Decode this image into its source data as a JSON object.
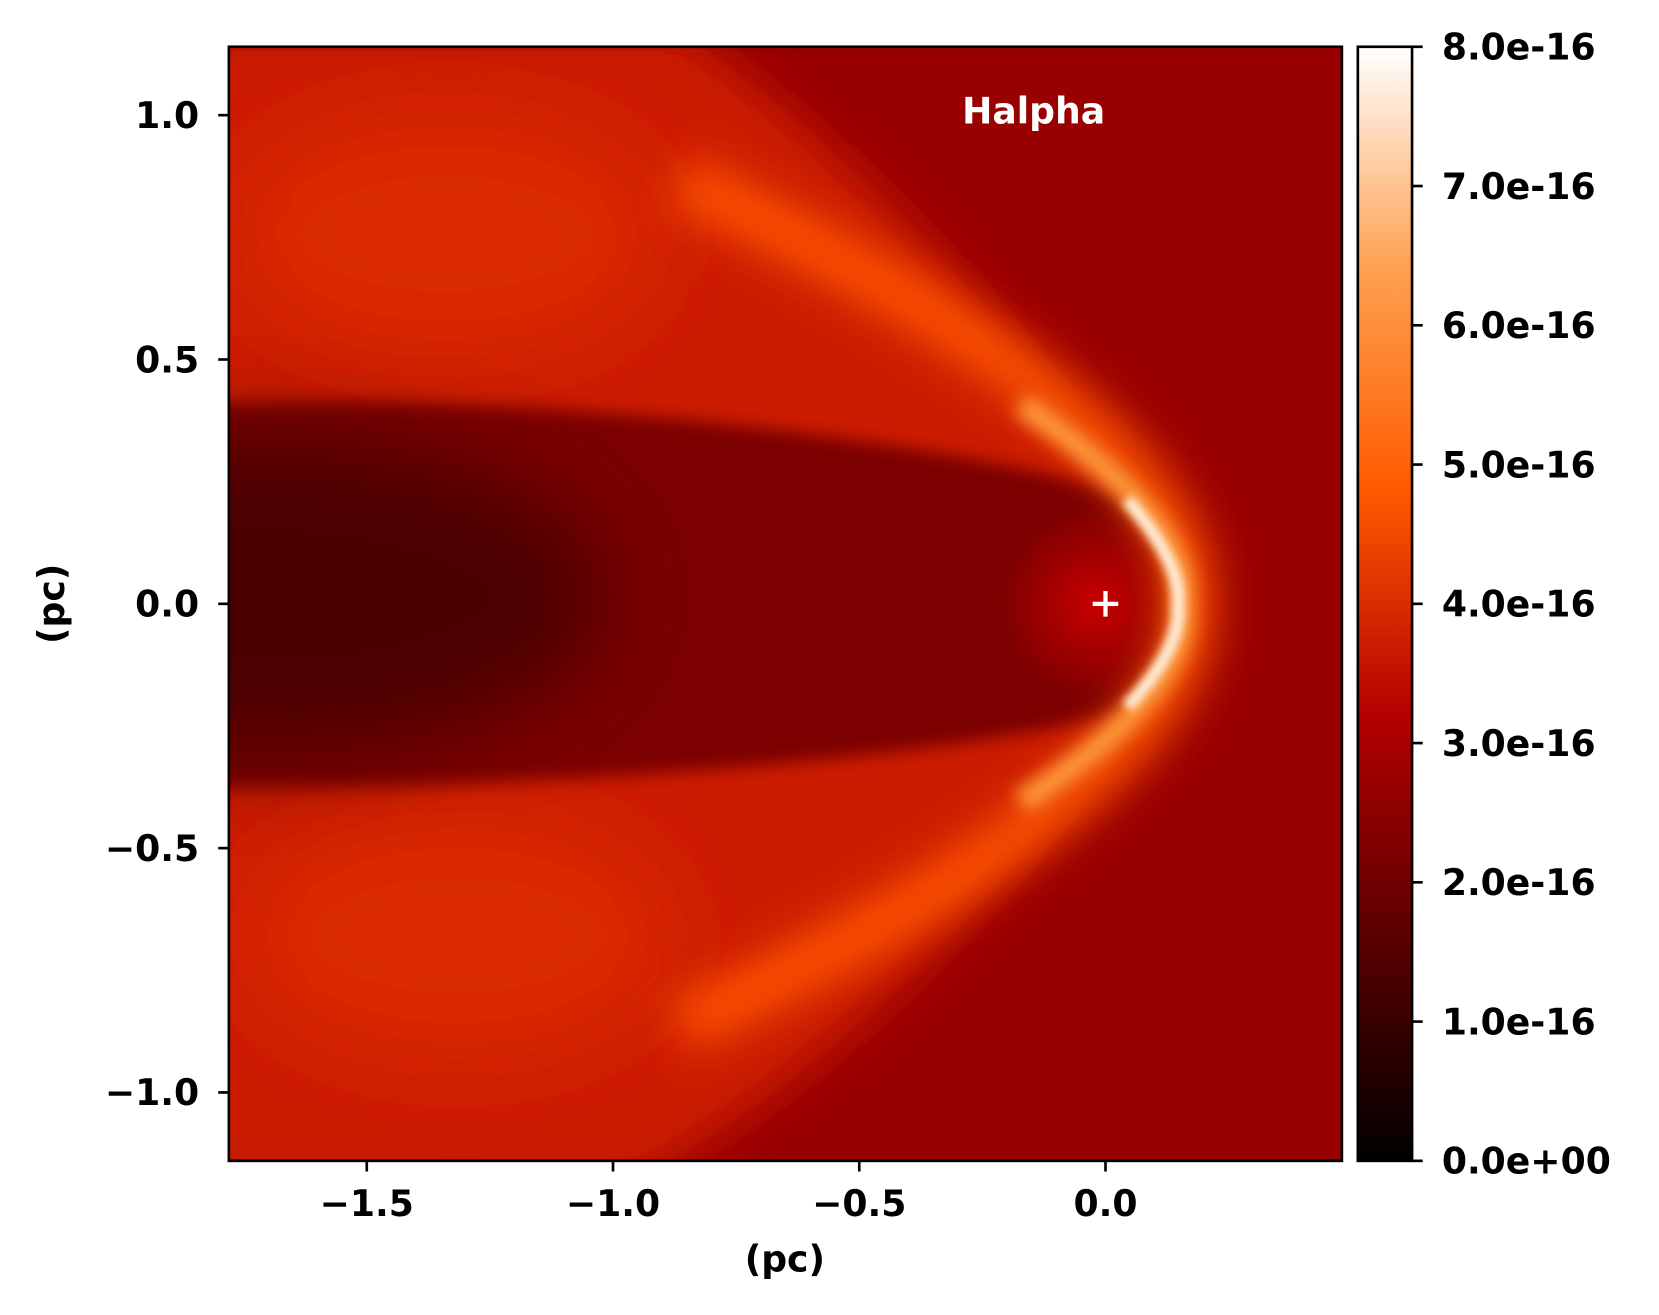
{
  "chart_data": {
    "type": "heatmap",
    "annotation": "Halpha",
    "xlabel": "(pc)",
    "ylabel": "(pc)",
    "xlim": [
      -1.78,
      0.48
    ],
    "ylim": [
      -1.14,
      1.14
    ],
    "xticks": [
      {
        "value": -1.5,
        "label": "−1.5"
      },
      {
        "value": -1.0,
        "label": "−1.0"
      },
      {
        "value": -0.5,
        "label": "−0.5"
      },
      {
        "value": 0.0,
        "label": "0.0"
      }
    ],
    "yticks": [
      {
        "value": -1.0,
        "label": "−1.0"
      },
      {
        "value": -0.5,
        "label": "−0.5"
      },
      {
        "value": 0.0,
        "label": "0.0"
      },
      {
        "value": 0.5,
        "label": "0.5"
      },
      {
        "value": 1.0,
        "label": "1.0"
      }
    ],
    "markers": [
      {
        "x": 0.0,
        "y": 0.0,
        "color": "#ffffff"
      }
    ],
    "colorbar": {
      "lim": [
        0,
        8e-16
      ],
      "colors": [
        "#000000",
        "#5a0000",
        "#b40000",
        "#ff5a00",
        "#ffa050",
        "#ffffff"
      ],
      "ticks": [
        {
          "value": 0,
          "label": "0.0e+00"
        },
        {
          "value": 1e-16,
          "label": "1.0e-16"
        },
        {
          "value": 2e-16,
          "label": "2.0e-16"
        },
        {
          "value": 3e-16,
          "label": "3.0e-16"
        },
        {
          "value": 4e-16,
          "label": "4.0e-16"
        },
        {
          "value": 5e-16,
          "label": "5.0e-16"
        },
        {
          "value": 6e-16,
          "label": "6.0e-16"
        },
        {
          "value": 7e-16,
          "label": "7.0e-16"
        },
        {
          "value": 8e-16,
          "label": "8.0e-16"
        }
      ]
    }
  }
}
